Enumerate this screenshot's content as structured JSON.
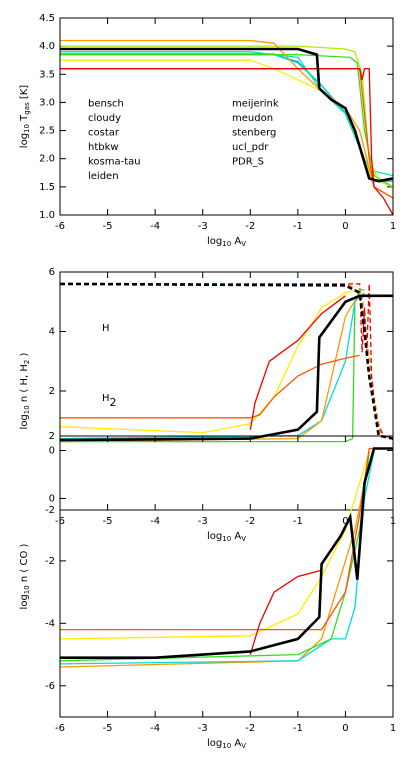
{
  "chart_data": [
    {
      "type": "line",
      "ylabel": [
        "log",
        "10",
        " T",
        "gas",
        " [K]"
      ],
      "xlabel": [
        "log",
        "10",
        " A",
        "V"
      ],
      "xlim": [
        -6,
        1
      ],
      "xticks": [
        -6,
        -5,
        -4,
        -3,
        -2,
        -1,
        0,
        1
      ],
      "ylim": [
        1,
        4.5
      ],
      "yticks": [
        {
          "value": 1,
          "label": "1.0"
        },
        1.5,
        {
          "value": 2,
          "label": "2.0"
        },
        2.5,
        {
          "value": 3,
          "label": "3.0"
        },
        3.5,
        {
          "value": 4,
          "label": "4.0"
        },
        4.5
      ],
      "legend": "center-left",
      "series": [
        {
          "name": "bensch",
          "color": "#0050ff",
          "x": [
            -6,
            -1.5,
            -1,
            -0.5,
            0,
            0.3,
            0.6,
            1
          ],
          "values": [
            3.85,
            3.85,
            3.72,
            3.3,
            2.8,
            2.2,
            1.62,
            1.6
          ]
        },
        {
          "name": "cloudy",
          "color": "#0099ee",
          "x": [
            -6,
            -1.5,
            -1,
            -0.5,
            0,
            0.3,
            0.6,
            1
          ],
          "values": [
            3.86,
            3.86,
            3.71,
            3.3,
            2.82,
            2.2,
            1.63,
            1.6
          ]
        },
        {
          "name": "costar",
          "color": "#00dddd",
          "x": [
            -6,
            -1.5,
            -1,
            -0.5,
            0,
            0.3,
            0.6,
            1
          ],
          "values": [
            3.85,
            3.85,
            3.7,
            3.3,
            2.8,
            2.2,
            1.6,
            1.6
          ]
        },
        {
          "name": "htbkw",
          "color": "#00ee99",
          "x": [
            -6,
            -2,
            -1,
            -0.5,
            0,
            0.5,
            1
          ],
          "values": [
            3.9,
            3.9,
            3.8,
            3.2,
            2.8,
            1.8,
            1.7
          ]
        },
        {
          "name": "kosma-tau",
          "color": "#33dd22",
          "x": [
            -6,
            -1,
            0.1,
            0.25,
            0.4,
            0.6,
            1
          ],
          "values": [
            3.85,
            3.85,
            3.8,
            3.7,
            2.5,
            1.7,
            1.5
          ]
        },
        {
          "name": "leiden",
          "color": "#aaee00",
          "x": [
            -6,
            -1,
            0,
            0.2,
            0.35,
            0.5,
            0.7,
            1
          ],
          "values": [
            4.0,
            4.0,
            3.95,
            3.9,
            3.5,
            2.0,
            1.6,
            1.5
          ]
        },
        {
          "name": "meijerink",
          "color": "#ffee00",
          "x": [
            -6,
            -2,
            -1.5,
            -1,
            -0.5,
            0,
            0.4,
            0.6,
            1
          ],
          "values": [
            3.75,
            3.75,
            3.6,
            3.4,
            3.2,
            2.9,
            2.0,
            1.5,
            1.3
          ]
        },
        {
          "name": "meudon",
          "color": "#ff9900",
          "x": [
            -6,
            -2,
            -1.5,
            -1,
            -0.5,
            0,
            0.3,
            0.6,
            1
          ],
          "values": [
            4.1,
            4.1,
            4.05,
            3.6,
            3.2,
            2.9,
            2.5,
            1.5,
            1.3
          ]
        },
        {
          "name": "stenberg",
          "color": "#ff5500",
          "x": [
            -6,
            -0.5,
            0.3,
            0.5,
            0.6,
            1
          ],
          "values": [
            3.6,
            3.6,
            3.6,
            2.0,
            1.5,
            1.3
          ]
        },
        {
          "name": "ucl_pdr",
          "color": "#ee0000",
          "x": [
            -6,
            0.2,
            0.3,
            0.35,
            0.4,
            0.5,
            0.55,
            0.6,
            0.8,
            1
          ],
          "values": [
            3.6,
            3.6,
            3.6,
            3.4,
            3.6,
            3.6,
            2.0,
            1.5,
            1.3,
            1.0
          ]
        },
        {
          "name": "PDR_S",
          "color": "#000000",
          "x": [
            -6,
            -1,
            -0.6,
            -0.55,
            -0.3,
            0,
            0.2,
            0.5,
            0.7,
            1
          ],
          "values": [
            3.95,
            3.95,
            3.85,
            3.25,
            3.05,
            2.9,
            2.5,
            1.65,
            1.6,
            1.65
          ]
        }
      ]
    },
    {
      "type": "line",
      "ylabel": [
        "log",
        "10",
        " n ( H, H",
        "2",
        " )"
      ],
      "xlabel": [
        "log",
        "10",
        " A",
        "V"
      ],
      "annotations": [
        [
          "H"
        ],
        [
          "H",
          "2"
        ]
      ],
      "xlim": [
        -6,
        1
      ],
      "xticks": [
        -6,
        -5,
        -4,
        -3,
        -2,
        -1,
        0,
        1
      ],
      "ylim": [
        -2,
        6
      ],
      "yticks": [
        -2,
        0,
        2,
        4,
        6
      ],
      "series": [
        {
          "color": "#ffee00",
          "dash": true,
          "x": [
            -6,
            0,
            0.3,
            0.45,
            0.55,
            0.7,
            1
          ],
          "values": [
            5.6,
            5.55,
            5.3,
            3.5,
            2.0,
            0.5,
            0.4
          ]
        },
        {
          "color": "#ff9900",
          "dash": true,
          "x": [
            -6,
            0.1,
            0.35,
            0.45,
            0.6,
            0.75,
            1
          ],
          "values": [
            5.6,
            5.55,
            5.2,
            3.8,
            1.8,
            0.5,
            0.4
          ]
        },
        {
          "color": "#ee0000",
          "dash": true,
          "x": [
            -6,
            0.3,
            0.35,
            0.4,
            0.45,
            0.5,
            0.55,
            0.65,
            0.8,
            1
          ],
          "values": [
            5.6,
            5.6,
            3.3,
            4.8,
            3.3,
            5.6,
            2.5,
            1.0,
            0.5,
            0.4
          ]
        },
        {
          "color": "#ffee00",
          "x": [
            -6,
            -3,
            -2,
            -1.5,
            -1,
            -0.5,
            0,
            0.3
          ],
          "values": [
            0.8,
            0.6,
            0.9,
            1.8,
            3.5,
            4.8,
            5.3,
            5.4
          ]
        },
        {
          "color": "#33dd22",
          "x": [
            -6,
            0,
            0.15,
            0.2,
            0.3,
            0.4
          ],
          "values": [
            0.3,
            0.3,
            0.4,
            5.0,
            5.4,
            5.4
          ]
        },
        {
          "color": "#00dddd",
          "x": [
            -6,
            -1,
            -0.5,
            0,
            0.2,
            0.4
          ],
          "values": [
            0.4,
            0.5,
            1.0,
            3.0,
            5.0,
            5.3
          ]
        },
        {
          "color": "#ff9900",
          "x": [
            -6,
            -1,
            -0.5,
            0,
            0.3
          ],
          "values": [
            0.3,
            0.4,
            1.0,
            4.5,
            5.3
          ]
        },
        {
          "color": "#ff5500",
          "x": [
            -6,
            -2,
            -1.8,
            -1.5,
            -1,
            -0.5,
            0,
            0.3
          ],
          "values": [
            1.1,
            1.1,
            1.2,
            1.8,
            2.5,
            2.9,
            3.1,
            3.2
          ]
        },
        {
          "color": "#ee0000",
          "x": [
            -2,
            -1.9,
            -1.6,
            -1,
            -0.5,
            0
          ],
          "values": [
            0.7,
            1.6,
            3.0,
            3.7,
            4.6,
            5.2
          ]
        },
        {
          "color": "#000000",
          "dash": true,
          "x": [
            -6,
            0,
            0.3,
            0.4,
            0.5,
            0.6,
            0.7,
            1
          ],
          "values": [
            5.6,
            5.55,
            5.3,
            4.0,
            2.5,
            1.5,
            0.5,
            0.4
          ]
        },
        {
          "color": "#000000",
          "x": [
            -6,
            -2,
            -1,
            -0.6,
            -0.55,
            0,
            0.3,
            1
          ],
          "values": [
            0.35,
            0.4,
            0.7,
            1.3,
            3.8,
            5.0,
            5.2,
            5.2
          ]
        }
      ]
    },
    {
      "type": "line",
      "ylabel": [
        "log",
        "10",
        " n ( CO )"
      ],
      "xlabel": [
        "log",
        "10",
        " A",
        "V"
      ],
      "xlim": [
        -6,
        1
      ],
      "xticks": [
        -6,
        -5,
        -4,
        -3,
        -2,
        -1,
        0,
        1
      ],
      "ylim": [
        -7,
        2
      ],
      "yticks": [
        -6,
        -4,
        -2,
        0,
        2
      ],
      "series": [
        {
          "color": "#ff9900",
          "x": [
            -6,
            -1,
            -0.5,
            0,
            0.2,
            0.4,
            0.6,
            1
          ],
          "values": [
            -5.4,
            -5.2,
            -4.5,
            -2.0,
            -1.0,
            0.5,
            1.6,
            1.6
          ]
        },
        {
          "color": "#00dddd",
          "x": [
            -6,
            -1,
            -0.3,
            0,
            0.2,
            0.4,
            0.6
          ],
          "values": [
            -5.3,
            -5.2,
            -4.5,
            -4.5,
            -3.5,
            0,
            1.5
          ]
        },
        {
          "color": "#33dd22",
          "x": [
            -6,
            -1,
            -0.3,
            0,
            0.3,
            0.5
          ],
          "values": [
            -5.2,
            -5.0,
            -4.5,
            -3.0,
            -1.0,
            1.5
          ]
        },
        {
          "color": "#ffee00",
          "x": [
            -6,
            -2,
            -1,
            -0.5,
            0,
            0.3,
            0.5
          ],
          "values": [
            -4.5,
            -4.4,
            -3.7,
            -2.5,
            -1.0,
            0.5,
            1.5
          ]
        },
        {
          "color": "#ff5500",
          "x": [
            -6,
            -0.5,
            0,
            0.3,
            0.5,
            1
          ],
          "values": [
            -4.2,
            -4.2,
            -3.0,
            -0.5,
            1.6,
            1.6
          ]
        },
        {
          "color": "#ee0000",
          "x": [
            -2,
            -1.8,
            -1.5,
            -1,
            -0.5
          ],
          "values": [
            -5.0,
            -4.0,
            -3.0,
            -2.5,
            -2.3
          ]
        },
        {
          "color": "#000000",
          "x": [
            -6,
            -4,
            -2,
            -1,
            -0.55,
            -0.5,
            -0.1,
            0.1,
            0.25,
            0.4,
            0.6,
            1
          ],
          "values": [
            -5.1,
            -5.1,
            -4.9,
            -4.5,
            -3.8,
            -2.1,
            -1.2,
            -0.6,
            -2.6,
            0.5,
            1.6,
            1.6
          ]
        }
      ]
    }
  ]
}
